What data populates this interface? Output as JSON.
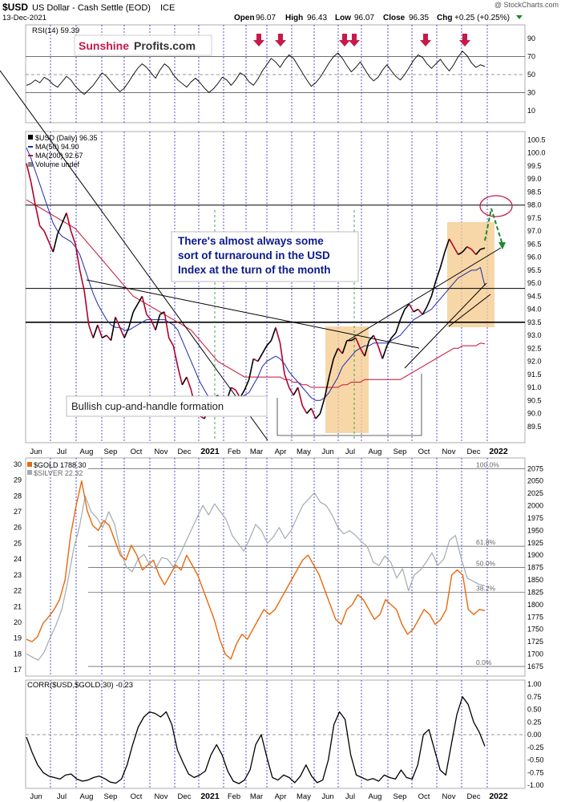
{
  "header": {
    "symbol": "$USD",
    "description": "US Dollar - Cash Settle (EOD)",
    "exchange": "ICE",
    "date": "13-Dec-2021",
    "open_label": "Open",
    "open": "96.07",
    "high_label": "High",
    "high": "96.43",
    "low_label": "Low",
    "low": "96.07",
    "close_label": "Close",
    "close": "96.35",
    "chg_label": "Chg",
    "chg": "+0.25 (+0.25%)",
    "watermark": "@ StockCharts.com"
  },
  "logo": {
    "part1": "Sunshine",
    "part2": "Profits.com"
  },
  "colors": {
    "usd_up": "#000000",
    "usd_down": "#b0002a",
    "ma50": "#1f2aa8",
    "ma200": "#c8102e",
    "gold": "#e8690b",
    "silver": "#a3aab3",
    "highlight": "#f4c98b",
    "arrow": "#c51a4a",
    "annotation_text": "#0b1a8c",
    "target_green": "#1b8a2c"
  },
  "x_axis": {
    "labels": [
      "Jun",
      "Jul",
      "Aug",
      "Sep",
      "Oct",
      "Nov",
      "Dec",
      "2021",
      "Feb",
      "Mar",
      "Apr",
      "May",
      "Jun",
      "Jul",
      "Aug",
      "Sep",
      "Oct",
      "Nov",
      "Dec",
      "2022"
    ],
    "bold_labels": [
      "2021",
      "2022"
    ]
  },
  "annotations": {
    "turnaround": [
      "There's almost always some",
      "sort of turnaround in the USD",
      "Index at the turn of the month"
    ],
    "cup_handle": "Bullish cup-and-handle formation"
  },
  "chart_data": [
    {
      "type": "line",
      "panel": "rsi",
      "title": "RSI(14) 59.39",
      "indicator": "RSI(14)",
      "last_value": 59.39,
      "ylim": [
        0,
        100
      ],
      "y_ticks": [
        10,
        30,
        50,
        70,
        90
      ],
      "reference_lines": [
        30,
        50,
        70
      ],
      "overbought_arrows_at": [
        "Mar",
        "Apr",
        "Jul",
        "Jul",
        "Oct",
        "Nov"
      ],
      "series": [
        {
          "name": "RSI(14)",
          "values": [
            38,
            40,
            44,
            41,
            47,
            44,
            39,
            36,
            42,
            48,
            44,
            37,
            32,
            28,
            33,
            38,
            45,
            52,
            48,
            42,
            36,
            31,
            35,
            42,
            50,
            57,
            62,
            58,
            52,
            46,
            55,
            62,
            58,
            50,
            44,
            40,
            36,
            42,
            46,
            41,
            35,
            30,
            34,
            40,
            47,
            44,
            38,
            44,
            52,
            49,
            42,
            38,
            45,
            54,
            61,
            68,
            64,
            58,
            66,
            72,
            68,
            60,
            52,
            44,
            37,
            41,
            47,
            55,
            63,
            70,
            74,
            68,
            60,
            53,
            58,
            64,
            56,
            48,
            43,
            47,
            55,
            61,
            54,
            48,
            44,
            50,
            58,
            66,
            72,
            69,
            62,
            57,
            62,
            67,
            60,
            54,
            61,
            70,
            76,
            71,
            63,
            58,
            61,
            59
          ],
          "start": "Jun 2020",
          "end": "Dec 2021"
        }
      ]
    },
    {
      "type": "line",
      "panel": "usd",
      "title": "$USD (Daily) 96.35",
      "legend": [
        "$USD (Daily) 96.35",
        "MA(50) 94.90",
        "MA(200) 92.67",
        "Volume undef"
      ],
      "ylim": [
        89,
        100.7
      ],
      "y_ticks": [
        89.5,
        90.0,
        90.5,
        91.0,
        91.5,
        92.0,
        92.5,
        93.0,
        93.5,
        94.0,
        94.5,
        95.0,
        95.5,
        96.0,
        96.5,
        97.0,
        97.5,
        98.0,
        98.5,
        99.0,
        99.5,
        100.0,
        100.5
      ],
      "horizontal_lines": [
        98.0,
        94.8,
        93.5
      ],
      "series": [
        {
          "name": "$USD",
          "values": [
            99.6,
            98.9,
            98.0,
            97.2,
            97.0,
            96.6,
            96.2,
            96.9,
            97.3,
            97.7,
            97.0,
            96.5,
            95.5,
            94.7,
            93.4,
            92.9,
            93.4,
            92.9,
            93.0,
            92.8,
            93.7,
            93.3,
            92.9,
            93.3,
            93.9,
            94.2,
            94.5,
            93.8,
            93.6,
            93.2,
            93.8,
            93.9,
            92.9,
            92.6,
            91.8,
            91.1,
            91.4,
            90.9,
            90.2,
            89.9,
            89.8,
            90.3,
            90.6,
            90.7,
            90.4,
            90.5,
            91.0,
            90.9,
            90.6,
            90.9,
            91.3,
            92.1,
            92.0,
            92.3,
            92.6,
            92.8,
            93.3,
            92.7,
            91.5,
            91.0,
            90.7,
            91.0,
            90.3,
            90.0,
            90.2,
            89.8,
            90.0,
            90.6,
            91.4,
            92.1,
            92.5,
            92.3,
            92.8,
            92.8,
            92.9,
            92.5,
            92.2,
            92.8,
            93.0,
            92.6,
            92.1,
            92.6,
            92.9,
            93.1,
            93.6,
            94.0,
            94.2,
            93.9,
            94.0,
            93.8,
            94.1,
            94.5,
            95.1,
            95.6,
            96.2,
            96.7,
            96.4,
            96.1,
            96.2,
            96.4,
            96.3,
            96.1,
            96.3,
            96.35
          ],
          "start": "Jun 2020",
          "end": "13-Dec-2021"
        },
        {
          "name": "MA(50)",
          "values": [
            100.2,
            99.8,
            99.3,
            98.8,
            98.3,
            97.8,
            97.3,
            97.0,
            96.8,
            96.7,
            96.6,
            96.4,
            96.1,
            95.6,
            95.1,
            94.6,
            94.2,
            93.9,
            93.6,
            93.4,
            93.3,
            93.3,
            93.2,
            93.2,
            93.3,
            93.4,
            93.5,
            93.6,
            93.6,
            93.6,
            93.6,
            93.6,
            93.5,
            93.4,
            93.2,
            92.8,
            92.4,
            92.0,
            91.6,
            91.2,
            90.9,
            90.6,
            90.4,
            90.3,
            90.3,
            90.3,
            90.4,
            90.5,
            90.6,
            90.7,
            90.8,
            91.1,
            91.4,
            91.8,
            92.0,
            92.1,
            92.2,
            92.1,
            91.9,
            91.6,
            91.4,
            91.2,
            91.0,
            90.8,
            90.6,
            90.5,
            90.5,
            90.6,
            90.8,
            91.1,
            91.4,
            91.8,
            92.0,
            92.2,
            92.4,
            92.5,
            92.6,
            92.6,
            92.7,
            92.7,
            92.7,
            92.7,
            92.8,
            92.9,
            93.0,
            93.2,
            93.4,
            93.6,
            93.7,
            93.8,
            93.9,
            94.0,
            94.2,
            94.4,
            94.6,
            94.8,
            95.0,
            95.2,
            95.3,
            95.4,
            95.5,
            95.5,
            95.6,
            94.9
          ],
          "start": "Jun 2020",
          "end": "Dec 2021"
        },
        {
          "name": "MA(200)",
          "values": [
            98.2,
            98.1,
            98.0,
            97.9,
            97.8,
            97.7,
            97.6,
            97.5,
            97.4,
            97.3,
            97.2,
            97.1,
            96.9,
            96.7,
            96.5,
            96.3,
            96.1,
            95.9,
            95.7,
            95.5,
            95.3,
            95.1,
            94.9,
            94.7,
            94.5,
            94.4,
            94.3,
            94.2,
            94.1,
            94.0,
            93.9,
            93.8,
            93.7,
            93.6,
            93.5,
            93.4,
            93.3,
            93.2,
            93.0,
            92.8,
            92.6,
            92.4,
            92.2,
            92.0,
            91.9,
            91.8,
            91.7,
            91.6,
            91.5,
            91.4,
            91.4,
            91.4,
            91.4,
            91.4,
            91.4,
            91.4,
            91.4,
            91.4,
            91.3,
            91.3,
            91.2,
            91.2,
            91.1,
            91.1,
            91.0,
            91.0,
            91.0,
            91.0,
            91.0,
            91.0,
            91.0,
            91.1,
            91.1,
            91.2,
            91.2,
            91.2,
            91.3,
            91.3,
            91.3,
            91.3,
            91.3,
            91.3,
            91.3,
            91.3,
            91.3,
            91.4,
            91.5,
            91.6,
            91.7,
            91.8,
            91.9,
            92.0,
            92.1,
            92.2,
            92.3,
            92.4,
            92.5,
            92.5,
            92.6,
            92.6,
            92.6,
            92.6,
            92.7,
            92.67
          ],
          "start": "Jun 2020",
          "end": "Dec 2021"
        }
      ]
    },
    {
      "type": "line",
      "panel": "gold_silver",
      "title": "$GOLD 1788.30",
      "legend": [
        "$GOLD 1788.30",
        "$SILVER 22.32"
      ],
      "y_left_label": "$SILVER",
      "y_left_ticks": [
        17,
        18,
        19,
        20,
        21,
        22,
        23,
        24,
        25,
        26,
        27,
        28,
        29,
        30
      ],
      "ylim_left": [
        16.8,
        30.2
      ],
      "y_right_label": "$GOLD",
      "y_right_ticks": [
        1675,
        1700,
        1725,
        1750,
        1775,
        1800,
        1825,
        1850,
        1875,
        1900,
        1925,
        1950,
        1975,
        2000,
        2025,
        2050,
        2075
      ],
      "ylim_right": [
        1662,
        2090
      ],
      "fibonacci_levels": [
        {
          "label": "100.0%",
          "value": 2075
        },
        {
          "label": "61.8%",
          "value": 1918
        },
        {
          "label": "50.0%",
          "value": 1875
        },
        {
          "label": "38.2%",
          "value": 1825
        },
        {
          "label": "0.0%",
          "value": 1675
        }
      ],
      "series": [
        {
          "name": "$GOLD",
          "values": [
            1730,
            1725,
            1735,
            1762,
            1775,
            1790,
            1810,
            1850,
            1940,
            2000,
            2050,
            1990,
            1960,
            1950,
            1970,
            1960,
            1930,
            1900,
            1890,
            1920,
            1900,
            1870,
            1880,
            1890,
            1860,
            1840,
            1860,
            1880,
            1870,
            1900,
            1880,
            1860,
            1830,
            1800,
            1770,
            1730,
            1700,
            1690,
            1720,
            1740,
            1730,
            1750,
            1770,
            1790,
            1780,
            1790,
            1810,
            1830,
            1850,
            1870,
            1890,
            1900,
            1880,
            1860,
            1830,
            1800,
            1770,
            1760,
            1790,
            1800,
            1820,
            1810,
            1790,
            1770,
            1780,
            1810,
            1800,
            1790,
            1760,
            1740,
            1750,
            1770,
            1790,
            1780,
            1760,
            1770,
            1790,
            1860,
            1870,
            1860,
            1790,
            1780,
            1790,
            1788
          ],
          "start": "Jun 2020",
          "end": "Dec 2021"
        },
        {
          "name": "$SILVER",
          "values": [
            18.0,
            17.8,
            17.6,
            18.1,
            19.0,
            19.8,
            20.8,
            22.5,
            24.6,
            26.0,
            28.0,
            27.0,
            26.6,
            26.0,
            27.0,
            26.2,
            24.5,
            23.5,
            23.2,
            24.0,
            24.3,
            23.6,
            23.4,
            24.1,
            24.0,
            23.5,
            24.2,
            25.0,
            25.8,
            26.6,
            27.4,
            26.8,
            27.5,
            27.0,
            26.5,
            25.5,
            25.0,
            24.5,
            25.3,
            26.2,
            25.8,
            25.0,
            25.4,
            26.0,
            25.3,
            25.8,
            26.6,
            27.4,
            27.8,
            28.2,
            27.6,
            27.4,
            26.8,
            26.0,
            25.6,
            25.8,
            25.5,
            25.1,
            24.8,
            23.8,
            23.6,
            24.2,
            23.8,
            22.8,
            23.4,
            22.0,
            23.0,
            23.3,
            23.8,
            24.4,
            23.6,
            24.0,
            25.2,
            25.5,
            24.0,
            22.8,
            22.6,
            22.4,
            22.32
          ],
          "start": "Jun 2020",
          "end": "Dec 2021"
        }
      ]
    },
    {
      "type": "line",
      "panel": "correlation",
      "title": "CORR($USD,$GOLD,30) -0.23",
      "ylim": [
        -1.0,
        1.0
      ],
      "y_ticks": [
        -1.0,
        -0.75,
        -0.5,
        -0.25,
        0.0,
        0.25,
        0.5,
        0.75,
        1.0
      ],
      "reference_lines": [
        0.0
      ],
      "series": [
        {
          "name": "CORR($USD,$GOLD,30)",
          "values": [
            -0.05,
            -0.35,
            -0.6,
            -0.75,
            -0.82,
            -0.85,
            -0.88,
            -0.8,
            -0.78,
            -0.88,
            -0.92,
            -0.9,
            -0.85,
            -0.82,
            -0.87,
            -0.94,
            -0.96,
            -0.88,
            -0.6,
            -0.2,
            0.15,
            0.35,
            0.45,
            0.42,
            0.35,
            0.45,
            0.2,
            -0.3,
            -0.55,
            -0.78,
            -0.85,
            -0.8,
            -0.72,
            -0.4,
            -0.2,
            -0.4,
            -0.72,
            -0.92,
            -0.97,
            -0.9,
            -0.7,
            -0.2,
            0.0,
            -0.45,
            -0.85,
            -0.9,
            -0.8,
            -0.85,
            -0.95,
            -0.82,
            -0.6,
            -0.82,
            -0.95,
            -0.9,
            -0.5,
            0.2,
            0.45,
            0.3,
            -0.4,
            -0.8,
            -0.85,
            -0.9,
            -0.87,
            -0.92,
            -0.8,
            -0.85,
            -0.88,
            -0.7,
            -0.85,
            -0.88,
            -0.6,
            0.0,
            0.1,
            -0.3,
            -0.7,
            -0.8,
            -0.2,
            0.4,
            0.75,
            0.6,
            0.25,
            0.05,
            -0.23
          ],
          "start": "Jun 2020",
          "end": "Dec 2021"
        }
      ]
    }
  ]
}
